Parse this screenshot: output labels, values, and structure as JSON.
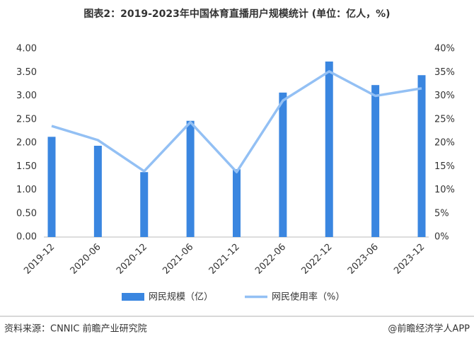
{
  "chart_data": {
    "type": "bar_line",
    "title": "图表2：2019-2023年中国体育直播用户规模统计 (单位：亿人，%)",
    "categories": [
      "2019-12",
      "2020-06",
      "2020-12",
      "2021-06",
      "2021-12",
      "2022-06",
      "2022-12",
      "2023-06",
      "2023-12"
    ],
    "series": [
      {
        "name": "网民规模（亿）",
        "type": "bar",
        "color": "#3a86e0",
        "values": [
          2.13,
          1.94,
          1.38,
          2.47,
          1.44,
          3.07,
          3.73,
          3.23,
          3.44
        ]
      },
      {
        "name": "网民使用率（%）",
        "type": "line",
        "axis": "y2",
        "color": "#93c0f4",
        "values": [
          23.6,
          20.6,
          14.0,
          24.4,
          13.8,
          29.0,
          35.2,
          30.0,
          31.6
        ]
      }
    ],
    "ylim": [
      0,
      4
    ],
    "yticks": [
      {
        "value": 0,
        "label": "0.00"
      },
      {
        "value": 0.5,
        "label": "0.50"
      },
      {
        "value": 1,
        "label": "1.00"
      },
      {
        "value": 1.5,
        "label": "1.50"
      },
      {
        "value": 2,
        "label": "2.00"
      },
      {
        "value": 2.5,
        "label": "2.50"
      },
      {
        "value": 3,
        "label": "3.00"
      },
      {
        "value": 3.5,
        "label": "3.50"
      },
      {
        "value": 4,
        "label": "4.00"
      }
    ],
    "y2lim": [
      0,
      40
    ],
    "y2ticks": [
      {
        "value": 0,
        "label": "0%"
      },
      {
        "value": 5,
        "label": "5%"
      },
      {
        "value": 10,
        "label": "10%"
      },
      {
        "value": 15,
        "label": "15%"
      },
      {
        "value": 20,
        "label": "20%"
      },
      {
        "value": 25,
        "label": "25%"
      },
      {
        "value": 30,
        "label": "30%"
      },
      {
        "value": 35,
        "label": "35%"
      },
      {
        "value": 40,
        "label": "40%"
      }
    ],
    "source": "资料来源：CNNIC 前瞻产业研究院",
    "credit": "@前瞻经济学人APP"
  }
}
